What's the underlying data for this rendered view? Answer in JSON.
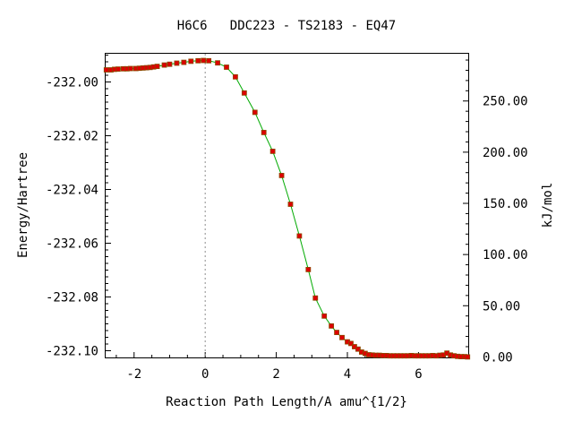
{
  "chart_data": {
    "type": "line",
    "title": "H6C6   DDC223 - TS2183 - EQ47",
    "xlabel": "Reaction Path Length/A amu^{1/2}",
    "ylabel": "Energy/Hartree",
    "y2label": "kJ/mol",
    "xlim": [
      -2.8,
      7.4
    ],
    "ylim": [
      -232.1025,
      -231.9895
    ],
    "y2_reference": -232.1023,
    "y2_factor": 2625.5,
    "xticks": [
      -2,
      0,
      2,
      4,
      6
    ],
    "yticks": [
      -232.0,
      -232.02,
      -232.04,
      -232.06,
      -232.08,
      -232.1
    ],
    "ytick_labels": [
      "-232.00",
      "-232.02",
      "-232.04",
      "-232.06",
      "-232.08",
      "-232.10"
    ],
    "y2ticks": [
      0,
      50,
      100,
      150,
      200,
      250
    ],
    "y2tick_labels": [
      "0.00",
      "50.00",
      "100.00",
      "150.00",
      "200.00",
      "250.00"
    ],
    "ts_x": 0,
    "line_color": "#00aa00",
    "marker_color": "#dd0000",
    "marker_edge_color": "#8b4a00",
    "series": [
      {
        "x": [
          -2.78,
          -2.65,
          -2.55,
          -2.45,
          -2.3,
          -2.2,
          -2.1,
          -1.95,
          -1.85,
          -1.75,
          -1.65,
          -1.55,
          -1.45,
          -1.35,
          -1.15,
          -1.0,
          -0.8,
          -0.6,
          -0.4,
          -0.2,
          -0.05,
          0.1,
          0.35,
          0.6,
          0.85,
          1.1,
          1.4,
          1.65,
          1.9,
          2.15,
          2.4,
          2.65,
          2.9,
          3.1,
          3.35,
          3.55,
          3.7,
          3.85,
          4.0,
          4.1,
          4.2,
          4.3,
          4.4,
          4.5,
          4.6,
          4.7,
          4.8,
          4.9,
          5.0,
          5.1,
          5.2,
          5.3,
          5.4,
          5.5,
          5.6,
          5.7,
          5.8,
          5.9,
          6.0,
          6.1,
          6.2,
          6.3,
          6.4,
          6.5,
          6.6,
          6.7,
          6.8,
          6.9,
          7.0,
          7.1,
          7.2,
          7.3,
          7.38
        ],
        "y": [
          -231.9955,
          -231.9955,
          -231.9953,
          -231.9952,
          -231.9951,
          -231.9951,
          -231.995,
          -231.995,
          -231.9949,
          -231.9948,
          -231.9947,
          -231.9946,
          -231.9944,
          -231.9942,
          -231.9937,
          -231.9934,
          -231.993,
          -231.9927,
          -231.9923,
          -231.9921,
          -231.992,
          -231.9921,
          -231.9929,
          -231.9945,
          -231.9981,
          -232.0041,
          -232.0113,
          -232.0188,
          -232.0258,
          -232.0348,
          -232.0455,
          -232.0573,
          -232.0698,
          -232.0804,
          -232.0871,
          -232.0908,
          -232.0932,
          -232.0951,
          -232.0967,
          -232.0973,
          -232.0985,
          -232.0994,
          -232.1005,
          -232.101,
          -232.1015,
          -232.1016,
          -232.1017,
          -232.1017,
          -232.1018,
          -232.1018,
          -232.1019,
          -232.1019,
          -232.1019,
          -232.1019,
          -232.1019,
          -232.1019,
          -232.1018,
          -232.1019,
          -232.1019,
          -232.1019,
          -232.1019,
          -232.1019,
          -232.1018,
          -232.1019,
          -232.1017,
          -232.1016,
          -232.1009,
          -232.1016,
          -232.1019,
          -232.1021,
          -232.1022,
          -232.1022,
          -232.1023
        ]
      }
    ]
  }
}
